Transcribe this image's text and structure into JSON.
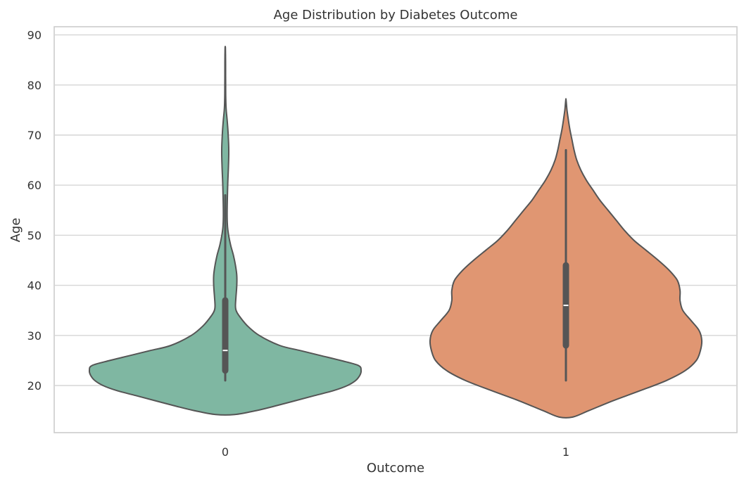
{
  "chart_data": {
    "type": "violin",
    "title": "Age Distribution by Diabetes Outcome",
    "xlabel": "Outcome",
    "ylabel": "Age",
    "categories": [
      "0",
      "1"
    ],
    "ylim": [
      11,
      92
    ],
    "yticks": [
      20,
      30,
      40,
      50,
      60,
      70,
      80,
      90
    ],
    "grid": true,
    "series": [
      {
        "category": "0",
        "color": "#7fb7a2",
        "profile": [
          [
            14.2,
            0.07
          ],
          [
            15,
            0.23
          ],
          [
            16,
            0.38
          ],
          [
            17,
            0.52
          ],
          [
            18,
            0.66
          ],
          [
            19,
            0.8
          ],
          [
            20,
            0.9
          ],
          [
            21,
            0.96
          ],
          [
            22,
            0.99
          ],
          [
            23,
            1.0
          ],
          [
            24,
            0.98
          ],
          [
            25,
            0.85
          ],
          [
            26,
            0.7
          ],
          [
            27,
            0.55
          ],
          [
            28,
            0.4
          ],
          [
            30,
            0.25
          ],
          [
            32,
            0.16
          ],
          [
            34,
            0.1
          ],
          [
            35,
            0.08
          ],
          [
            36,
            0.075
          ],
          [
            38,
            0.08
          ],
          [
            40,
            0.085
          ],
          [
            42,
            0.085
          ],
          [
            44,
            0.075
          ],
          [
            46,
            0.06
          ],
          [
            48,
            0.04
          ],
          [
            50,
            0.025
          ],
          [
            52,
            0.016
          ],
          [
            55,
            0.014
          ],
          [
            60,
            0.018
          ],
          [
            64,
            0.024
          ],
          [
            67,
            0.026
          ],
          [
            70,
            0.022
          ],
          [
            73,
            0.014
          ],
          [
            75,
            0.007
          ],
          [
            77,
            0.004
          ],
          [
            80,
            0.003
          ],
          [
            84,
            0.0025
          ],
          [
            86,
            0.002
          ],
          [
            87.5,
            0.001
          ]
        ],
        "whisker": [
          21,
          58
        ],
        "q1": 23,
        "median": 27,
        "q3": 37
      },
      {
        "category": "1",
        "color": "#e09672",
        "profile": [
          [
            13.7,
            0.05
          ],
          [
            15,
            0.17
          ],
          [
            17,
            0.35
          ],
          [
            19,
            0.55
          ],
          [
            21,
            0.74
          ],
          [
            23,
            0.88
          ],
          [
            25,
            0.96
          ],
          [
            27,
            0.99
          ],
          [
            29,
            1.0
          ],
          [
            31,
            0.98
          ],
          [
            33,
            0.92
          ],
          [
            35,
            0.86
          ],
          [
            37,
            0.84
          ],
          [
            39,
            0.84
          ],
          [
            41,
            0.82
          ],
          [
            43,
            0.76
          ],
          [
            45,
            0.68
          ],
          [
            47,
            0.59
          ],
          [
            49,
            0.5
          ],
          [
            51,
            0.43
          ],
          [
            53,
            0.37
          ],
          [
            55,
            0.31
          ],
          [
            57,
            0.25
          ],
          [
            59,
            0.2
          ],
          [
            61,
            0.15
          ],
          [
            63,
            0.11
          ],
          [
            65,
            0.08
          ],
          [
            67,
            0.06
          ],
          [
            69,
            0.045
          ],
          [
            71,
            0.03
          ],
          [
            73,
            0.018
          ],
          [
            75,
            0.008
          ],
          [
            77,
            0.001
          ]
        ],
        "whisker": [
          21,
          67
        ],
        "q1": 28,
        "median": 36,
        "q3": 44
      }
    ]
  }
}
